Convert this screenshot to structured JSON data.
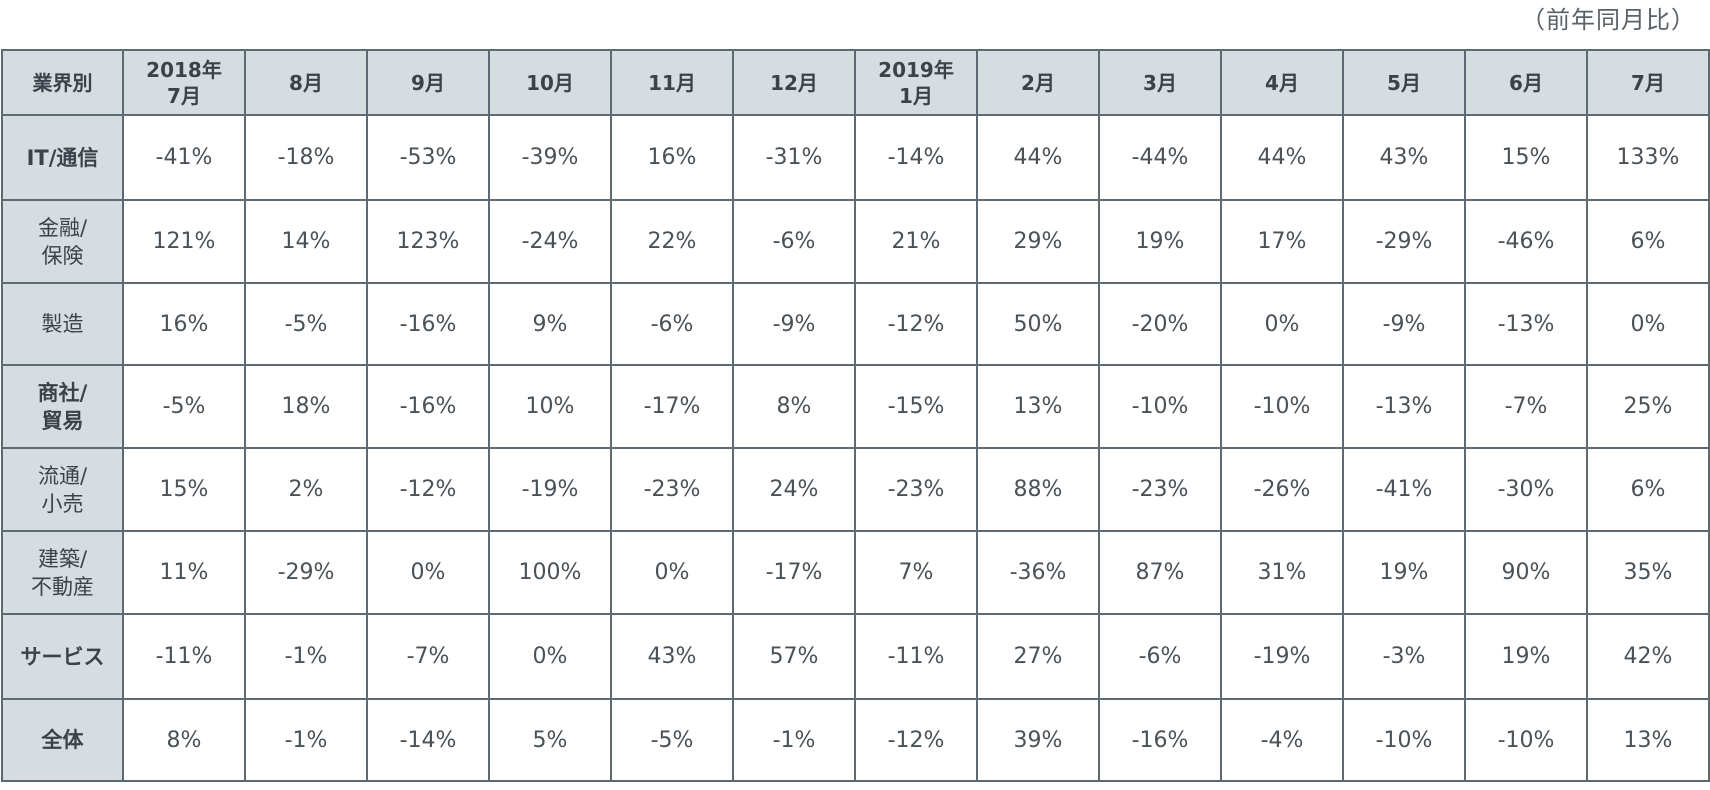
{
  "note": "（前年同月比）",
  "table": {
    "corner": "業界別",
    "columns": [
      [
        "2018年",
        "7月"
      ],
      [
        "8月"
      ],
      [
        "9月"
      ],
      [
        "10月"
      ],
      [
        "11月"
      ],
      [
        "12月"
      ],
      [
        "2019年",
        "1月"
      ],
      [
        "2月"
      ],
      [
        "3月"
      ],
      [
        "4月"
      ],
      [
        "5月"
      ],
      [
        "6月"
      ],
      [
        "7月"
      ]
    ],
    "rows": [
      {
        "label": [
          "IT/通信"
        ],
        "values": [
          "-41%",
          "-18%",
          "-53%",
          "-39%",
          "16%",
          "-31%",
          "-14%",
          "44%",
          "-44%",
          "44%",
          "43%",
          "15%",
          "133%"
        ]
      },
      {
        "label": [
          "金融/",
          "保険"
        ],
        "values": [
          "121%",
          "14%",
          "123%",
          "-24%",
          "22%",
          "-6%",
          "21%",
          "29%",
          "19%",
          "17%",
          "-29%",
          "-46%",
          "6%"
        ]
      },
      {
        "label": [
          "製造"
        ],
        "values": [
          "16%",
          "-5%",
          "-16%",
          "9%",
          "-6%",
          "-9%",
          "-12%",
          "50%",
          "-20%",
          "0%",
          "-9%",
          "-13%",
          "0%"
        ]
      },
      {
        "label": [
          "商社/",
          "貿易"
        ],
        "values": [
          "-5%",
          "18%",
          "-16%",
          "10%",
          "-17%",
          "8%",
          "-15%",
          "13%",
          "-10%",
          "-10%",
          "-13%",
          "-7%",
          "25%"
        ]
      },
      {
        "label": [
          "流通/",
          "小売"
        ],
        "values": [
          "15%",
          "2%",
          "-12%",
          "-19%",
          "-23%",
          "24%",
          "-23%",
          "88%",
          "-23%",
          "-26%",
          "-41%",
          "-30%",
          "6%"
        ]
      },
      {
        "label": [
          "建築/",
          "不動産"
        ],
        "values": [
          "11%",
          "-29%",
          "0%",
          "100%",
          "0%",
          "-17%",
          "7%",
          "-36%",
          "87%",
          "31%",
          "19%",
          "90%",
          "35%"
        ]
      },
      {
        "label": [
          "サービス"
        ],
        "values": [
          "-11%",
          "-1%",
          "-7%",
          "0%",
          "43%",
          "57%",
          "-11%",
          "27%",
          "-6%",
          "-19%",
          "-3%",
          "19%",
          "42%"
        ]
      },
      {
        "label": [
          "全体"
        ],
        "values": [
          "8%",
          "-1%",
          "-14%",
          "5%",
          "-5%",
          "-1%",
          "-12%",
          "39%",
          "-16%",
          "-4%",
          "-10%",
          "-10%",
          "13%"
        ]
      }
    ]
  }
}
